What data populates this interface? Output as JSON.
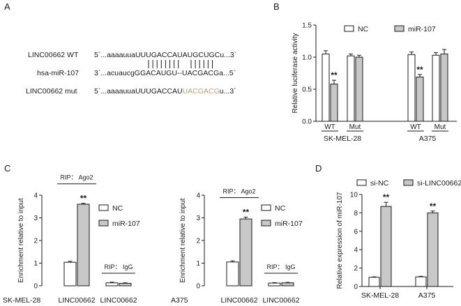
{
  "panels": [
    {
      "letter": "A"
    },
    {
      "letter": "B"
    },
    {
      "letter": "C"
    },
    {
      "letter": "D"
    }
  ],
  "alignment": {
    "rows": [
      {
        "label": "LINC00662 WT",
        "prefix": "5`...aaaauua",
        "core": "UUUGACCAUAUGCUG",
        "suffix": "Cu...3`"
      },
      {
        "label": "hsa-miR-107",
        "prefix": "3`...acuaucg",
        "core": "GGACAUGU--UACGACG",
        "suffix": "a...5`"
      },
      {
        "label": "LINC00662 mut",
        "prefix": "5`...aaaauua",
        "core": "UUUGACCAU",
        "mutated": "UACGACG",
        "suffix": "u...3`"
      }
    ],
    "pair_marks": "||||||||  ||||||",
    "mutated_color": "#b8a27a"
  },
  "colors": {
    "control_bar": "#ffffff",
    "treatment_bar": "#c8c8c8",
    "axis": "#1a1a1a"
  },
  "chart_data": [
    {
      "id": "B",
      "type": "bar",
      "ylabel": "Relative luciferase activity",
      "ylim": [
        0,
        1.5
      ],
      "yticks": [
        0.0,
        0.5,
        1.0,
        1.5
      ],
      "tick_format": "0.0",
      "legend": [
        "NC",
        "miR-107"
      ],
      "groups": [
        {
          "label": "WT",
          "super": "SK-MEL-28",
          "values": [
            1.05,
            0.58
          ],
          "errors": [
            0.05,
            0.06
          ],
          "stars": [
            "",
            "**"
          ]
        },
        {
          "label": "Mut",
          "super": "SK-MEL-28",
          "values": [
            1.02,
            1.0
          ],
          "errors": [
            0.03,
            0.03
          ],
          "stars": [
            "",
            ""
          ]
        },
        {
          "label": "WT",
          "super": "A375",
          "values": [
            1.04,
            0.69
          ],
          "errors": [
            0.04,
            0.04
          ],
          "stars": [
            "",
            "**"
          ]
        },
        {
          "label": "Mut",
          "super": "A375",
          "values": [
            1.03,
            1.05
          ],
          "errors": [
            0.04,
            0.07
          ],
          "stars": [
            "",
            ""
          ]
        }
      ],
      "super_labels": [
        "SK-MEL-28",
        "A375"
      ]
    },
    {
      "id": "C1",
      "type": "bar",
      "ylabel": "Enrichment relative to input",
      "ylim": [
        0,
        4
      ],
      "yticks": [
        0,
        1,
        2,
        3,
        4
      ],
      "tick_format": "0",
      "legend": [
        "NC",
        "miR-107"
      ],
      "row_label": "SK-MEL-28",
      "groups": [
        {
          "label": "LINC00662",
          "rip": "RIP： Ago2",
          "values": [
            1.04,
            3.6
          ],
          "errors": [
            0.04,
            0.04
          ],
          "stars": [
            "",
            "**"
          ]
        },
        {
          "label": "LINC00662",
          "rip": "RIP： IgG",
          "values": [
            0.13,
            0.11
          ],
          "errors": [
            0.03,
            0.02
          ],
          "stars": [
            "",
            ""
          ]
        }
      ]
    },
    {
      "id": "C2",
      "type": "bar",
      "ylabel": "Enrichment relative to input",
      "ylim": [
        0,
        4
      ],
      "yticks": [
        0,
        1,
        2,
        3,
        4
      ],
      "tick_format": "0",
      "legend": [
        "NC",
        "miR-107"
      ],
      "row_label": "A375",
      "groups": [
        {
          "label": "LINC00662",
          "rip": "RIP： Ago2",
          "values": [
            1.05,
            2.95
          ],
          "errors": [
            0.05,
            0.08
          ],
          "stars": [
            "",
            "**"
          ]
        },
        {
          "label": "LINC00662",
          "rip": "RIP： IgG",
          "values": [
            0.12,
            0.13
          ],
          "errors": [
            0.02,
            0.02
          ],
          "stars": [
            "",
            ""
          ]
        }
      ]
    },
    {
      "id": "D",
      "type": "bar",
      "ylabel": "Relative expression of miR-107",
      "ylim": [
        0,
        10
      ],
      "yticks": [
        0,
        2,
        4,
        6,
        8,
        10
      ],
      "tick_format": "0",
      "legend": [
        "si-NC",
        "si-LINC00662"
      ],
      "groups": [
        {
          "label": "SK-MEL-28",
          "values": [
            1.0,
            8.7
          ],
          "errors": [
            0.05,
            0.45
          ],
          "stars": [
            "",
            "**"
          ]
        },
        {
          "label": "A375",
          "values": [
            1.05,
            8.0
          ],
          "errors": [
            0.06,
            0.2
          ],
          "stars": [
            "",
            "**"
          ]
        }
      ]
    }
  ]
}
